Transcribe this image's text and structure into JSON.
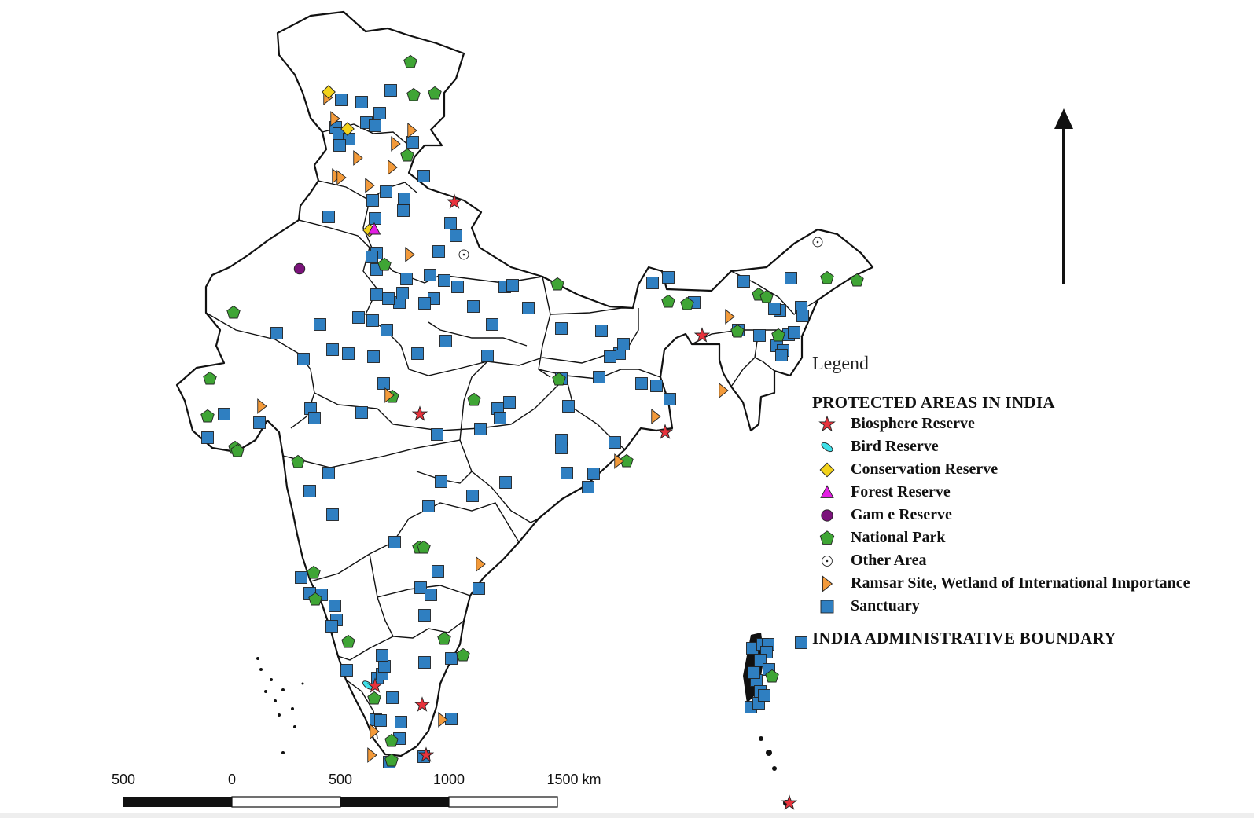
{
  "legend": {
    "title": "Legend",
    "heading": "PROTECTED AREAS IN INDIA",
    "items": [
      {
        "label": "Biosphere Reserve",
        "symbol": "star",
        "color": "#e8323c"
      },
      {
        "label": "Bird Reserve",
        "symbol": "ellipse",
        "color": "#3fe0e8"
      },
      {
        "label": "Conservation Reserve",
        "symbol": "diamond",
        "color": "#f2d21b"
      },
      {
        "label": "Forest Reserve",
        "symbol": "triangle",
        "color": "#e31ee3"
      },
      {
        "label": "Gam e Reserve",
        "symbol": "circle",
        "color": "#7a137a"
      },
      {
        "label": "National Park",
        "symbol": "pentagon",
        "color": "#3fa535"
      },
      {
        "label": "Other Area",
        "symbol": "dotcircle",
        "color": "#ffffff"
      },
      {
        "label": "Ramsar Site, Wetland of International Importance",
        "symbol": "flag",
        "color": "#f39a3a"
      },
      {
        "label": "Sanctuary",
        "symbol": "square",
        "color": "#2f7fc1"
      }
    ],
    "boundary": "INDIA ADMINISTRATIVE BOUNDARY"
  },
  "scale_bar": {
    "labels": [
      "500",
      "0",
      "500",
      "1000",
      "1500 km"
    ]
  },
  "north_arrow": "north-arrow"
}
